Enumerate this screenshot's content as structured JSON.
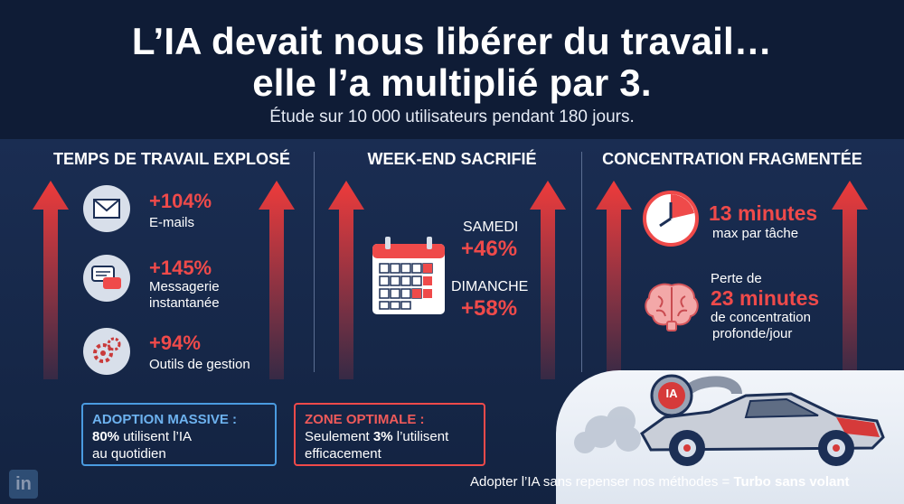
{
  "header": {
    "title_line1": "L’IA devait nous libérer du travail…",
    "title_line2": "elle l’a multiplié par 3.",
    "subtitle": "Étude sur 10 000 utilisateurs pendant 180 jours."
  },
  "sections": {
    "work": {
      "title": "TEMPS DE TRAVAIL EXPLOSÉ",
      "items": [
        {
          "value": "+104%",
          "label": "E-mails",
          "icon": "envelope-icon"
        },
        {
          "value": "+145%",
          "label_line1": "Messagerie",
          "label_line2": "instantanée",
          "icon": "chat-bubbles-icon"
        },
        {
          "value": "+94%",
          "label": "Outils de gestion",
          "icon": "gears-icon"
        }
      ]
    },
    "weekend": {
      "title": "WEEK-END SACRIFIÉ",
      "saturday_label": "SAMEDI",
      "saturday_value": "+46%",
      "sunday_label": "DIMANCHE",
      "sunday_value": "+58%",
      "icon": "calendar-icon"
    },
    "focus": {
      "title": "CONCENTRATION FRAGMENTÉE",
      "minutes_value": "13 minutes",
      "minutes_label": "max par tâche",
      "loss_prefix": "Perte de",
      "loss_value": "23 minutes",
      "loss_label_line1": "de concentration",
      "loss_label_line2": "profonde/jour",
      "icons": [
        "clock-icon",
        "brain-icon"
      ]
    }
  },
  "boxes": {
    "adoption": {
      "title": "ADOPTION MASSIVE :",
      "bold": "80%",
      "text_rest": " utilisent l’IA",
      "text_line2": "au quotidien"
    },
    "optimal": {
      "title": "ZONE OPTIMALE :",
      "text_pre": "Seulement ",
      "bold": "3%",
      "text_rest": " l’utilisent",
      "text_line2": "efficacement"
    }
  },
  "car": {
    "badge": "IA"
  },
  "footer": {
    "text": "Adopter l’IA sans repenser nos méthodes = ",
    "bold": "Turbo sans volant"
  },
  "logo": {
    "text": "in"
  },
  "colors": {
    "accent_red": "#ef4a4a",
    "accent_blue": "#4a9be0",
    "background": "#142444"
  }
}
